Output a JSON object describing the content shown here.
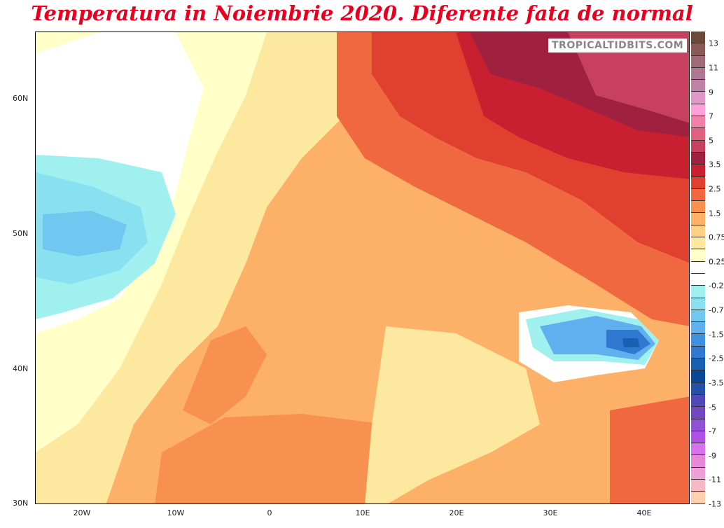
{
  "title": "Temperatura in Noiembrie 2020. Diferente fata de normal",
  "watermark": "TROPICALTIDBITS.COM",
  "lat_labels": [
    "60N",
    "50N",
    "40N",
    "30N"
  ],
  "lon_labels": [
    "20W",
    "10W",
    "0",
    "10E",
    "20E",
    "30E",
    "40E"
  ],
  "colorbar": {
    "labels": [
      "13",
      "11",
      "9",
      "7",
      "5",
      "3.5",
      "2.5",
      "1.5",
      "0.75",
      "0.25",
      "-0.25",
      "-0.75",
      "-1.5",
      "-2.5",
      "-3.5",
      "-5",
      "-7",
      "-9",
      "-11",
      "-13"
    ],
    "colors": [
      "#6b4a3a",
      "#8a5a58",
      "#a06a78",
      "#b07890",
      "#c080a8",
      "#e098c8",
      "#ffa0d8",
      "#f080a8",
      "#e06080",
      "#c84060",
      "#a02040",
      "#c82030",
      "#e04030",
      "#f06840",
      "#f89050",
      "#fdb068",
      "#fdd088",
      "#fde8a0",
      "#ffffc8",
      "#ffffff",
      "#ffffff",
      "#a0f0f0",
      "#88e0f0",
      "#70c8f0",
      "#60b0f0",
      "#4090e0",
      "#3078d0",
      "#1860b0",
      "#084898",
      "#2850a8",
      "#5048b8",
      "#7048c0",
      "#9050d8",
      "#b050e8",
      "#d870f0",
      "#e888d8",
      "#f0a0d8",
      "#f8b8c8",
      "#ffd0b0"
    ]
  }
}
